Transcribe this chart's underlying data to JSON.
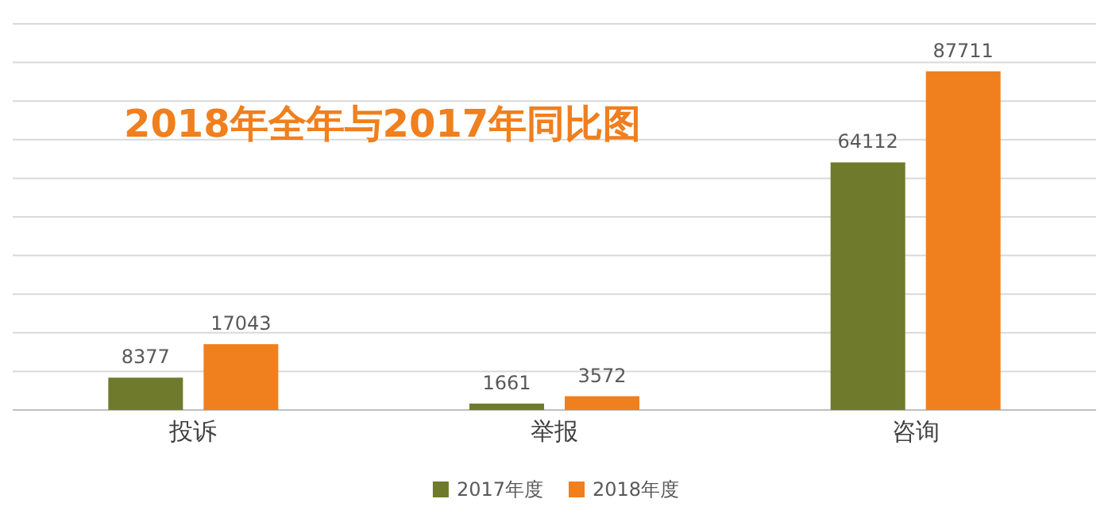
{
  "chart_data": {
    "type": "bar",
    "title": "2018年全年与2017年同比图",
    "categories": [
      "投诉",
      "举报",
      "咨询"
    ],
    "series": [
      {
        "name": "2017年度",
        "color": "#6f7a2c",
        "values": [
          8377,
          1661,
          64112
        ]
      },
      {
        "name": "2018年度",
        "color": "#f07f1e",
        "values": [
          17043,
          3572,
          87711
        ]
      }
    ],
    "ylim": [
      0,
      100000
    ],
    "yticks": [
      {
        "value": 0,
        "label": null
      },
      {
        "value": 10000,
        "label": null
      },
      {
        "value": 20000,
        "label": null
      },
      {
        "value": 30000,
        "label": null
      },
      {
        "value": 40000,
        "label": null
      },
      {
        "value": 50000,
        "label": null
      },
      {
        "value": 60000,
        "label": null
      },
      {
        "value": 70000,
        "label": null
      },
      {
        "value": 80000,
        "label": null
      },
      {
        "value": 90000,
        "label": null
      },
      {
        "value": 100000,
        "label": null
      }
    ],
    "tick_labels": "x",
    "grid": "y",
    "data_labels": true,
    "legend": "bottom"
  }
}
